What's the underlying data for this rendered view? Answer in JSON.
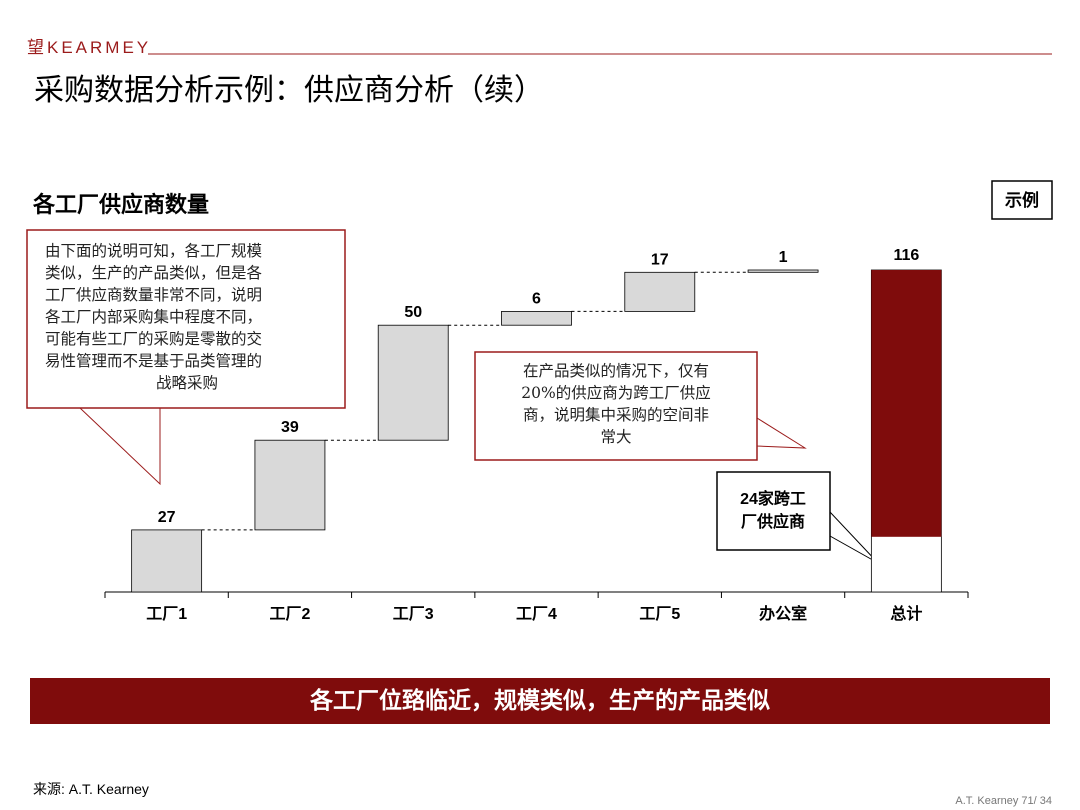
{
  "header": {
    "logo": "望KEARMEY",
    "title": "采购数据分析示例：供应商分析（续）"
  },
  "subtitle": "各工厂供应商数量",
  "badge": "示例",
  "callouts": [
    {
      "lines": [
        "由下面的说明可知，各工厂规模",
        "类似，生产的产品类似，但是各",
        "工厂供应商数量非常不同，说明",
        "各工厂内部采购集中程度不同，",
        "可能有些工厂的采购是零散的交",
        "易性管理而不是基于品类管理的",
        "战略采购"
      ]
    },
    {
      "lines": [
        "在产品类似的情况下，仅有",
        "20%的供应商为跨工厂供应",
        "商，说明集中采购的空间非",
        "常大"
      ]
    },
    {
      "lines": [
        "24家跨工",
        "厂供应商"
      ]
    }
  ],
  "chart_data": {
    "type": "waterfall",
    "categories": [
      "工厂1",
      "工厂2",
      "工厂3",
      "工厂4",
      "工厂5",
      "办公室",
      "总计"
    ],
    "values": [
      27,
      39,
      50,
      6,
      17,
      1,
      116
    ],
    "color": "#d9d9d9",
    "total_color": "#7f0c0c"
  },
  "banner": "各工厂位臵临近，规模类似，生产的产品类似",
  "source": "来源: A.T. Kearney",
  "footer": "A.T.  Kearney 71/   34"
}
